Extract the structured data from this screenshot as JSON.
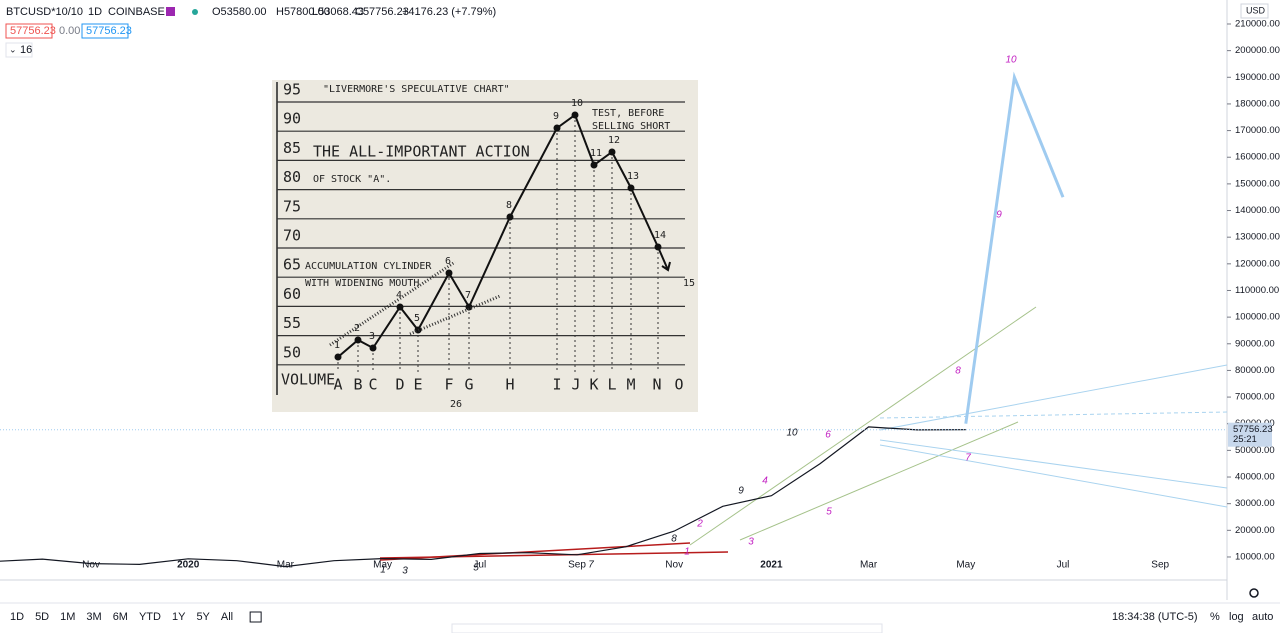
{
  "header": {
    "symbol": "BTCUSD*10/10",
    "interval": "1D",
    "exchange": "COINBASE",
    "open": "O53580.00",
    "high": "H57800.00",
    "low": "L53068.43",
    "close": "C57756.23",
    "change": "+4176.23 (+7.79%)"
  },
  "indicators": {
    "box1": "57756.23",
    "mid": "0.00",
    "box2": "57756.23",
    "count": "16"
  },
  "currency": "USD",
  "price_label": {
    "price": "57756.23",
    "countdown": "25:21"
  },
  "chart_data": {
    "type": "line",
    "categories": [
      null,
      null,
      "Nov",
      null,
      "2020",
      null,
      "Mar",
      null,
      "May",
      null,
      "Jul",
      null,
      "Sep",
      null,
      "Nov",
      null,
      "2021",
      null,
      "Mar",
      null,
      "May",
      null,
      "Jul",
      null,
      "Sep"
    ],
    "series": [
      {
        "color": "#131722",
        "values": [
          8300,
          9200,
          7500,
          7200,
          9300,
          8600,
          6400,
          8600,
          9400,
          9100,
          11300,
          11600,
          10800,
          13800,
          19700,
          29000,
          33000,
          45000,
          58800,
          57700,
          57756.23,
          null,
          null,
          null,
          null
        ]
      },
      {
        "color": "#9fcbf0",
        "values": [
          null,
          null,
          null,
          null,
          null,
          null,
          null,
          null,
          null,
          null,
          null,
          null,
          null,
          null,
          null,
          null,
          null,
          null,
          null,
          null,
          60000,
          190000,
          145000,
          null,
          null
        ]
      }
    ],
    "ylim": [
      1360,
      219000
    ],
    "yticks": [
      {
        "value": 10000,
        "label": "10000.00"
      },
      {
        "value": 20000,
        "label": "20000.00"
      },
      {
        "value": 30000,
        "label": "30000.00"
      },
      {
        "value": 40000,
        "label": "40000.00"
      },
      {
        "value": 50000,
        "label": "50000.00"
      },
      {
        "value": 60000,
        "label": "60000.00"
      },
      {
        "value": 70000,
        "label": "70000.00"
      },
      {
        "value": 80000,
        "label": "80000.00"
      },
      {
        "value": 90000,
        "label": "90000.00"
      },
      {
        "value": 100000,
        "label": "100000.00"
      },
      {
        "value": 110000,
        "label": "110000.00"
      },
      {
        "value": 120000,
        "label": "120000.00"
      },
      {
        "value": 130000,
        "label": "130000.00"
      },
      {
        "value": 140000,
        "label": "140000.00"
      },
      {
        "value": 150000,
        "label": "150000.00"
      },
      {
        "value": 160000,
        "label": "160000.00"
      },
      {
        "value": 170000,
        "label": "170000.00"
      },
      {
        "value": 180000,
        "label": "180000.00"
      },
      {
        "value": 190000,
        "label": "190000.00"
      },
      {
        "value": 200000,
        "label": "200000.00"
      },
      {
        "value": 210000,
        "label": "210000.00"
      }
    ],
    "grid": false
  },
  "annotations": [
    {
      "label": "10",
      "color": "#c21fc2"
    },
    {
      "label": "9",
      "color": "#c21fc2"
    },
    {
      "label": "8",
      "color": "#c21fc2"
    },
    {
      "label": "7",
      "color": "#c21fc2"
    },
    {
      "label": "6",
      "color": "#c21fc2"
    },
    {
      "label": "5",
      "color": "#c21fc2"
    },
    {
      "label": "4",
      "color": "#c21fc2"
    },
    {
      "label": "3",
      "color": "#c21fc2"
    },
    {
      "label": "2",
      "color": "#c21fc2"
    },
    {
      "label": "1",
      "color": "#c21fc2"
    },
    {
      "label": "10",
      "color": "#131722"
    },
    {
      "label": "9",
      "color": "#131722"
    },
    {
      "label": "8",
      "color": "#131722"
    },
    {
      "label": "7",
      "color": "#131722"
    },
    {
      "label": "5",
      "color": "#131722"
    },
    {
      "label": "3",
      "color": "#131722"
    },
    {
      "label": "1",
      "color": "#131722"
    }
  ],
  "inset": {
    "title": "\"LIVERMORE'S SPECULATIVE CHART\"",
    "note": "TEST, BEFORE",
    "note2": "SELLING SHORT",
    "caption": "THE ALL-IMPORTANT ACTION",
    "caption2": "OF STOCK \"A\".",
    "cylinder": "ACCUMULATION CYLINDER",
    "cylinder2": "WITH WIDENING MOUTH",
    "volume": "VOLUME",
    "page": "26",
    "y_labels": [
      95,
      90,
      85,
      80,
      75,
      70,
      65,
      60,
      55,
      50
    ],
    "letters": [
      "A",
      "B",
      "C",
      "D",
      "E",
      "F",
      "G",
      "H",
      "I",
      "J",
      "K",
      "L",
      "M",
      "N",
      "O"
    ],
    "points": [
      "1",
      "2",
      "3",
      "4",
      "5",
      "6",
      "7",
      "8",
      "9",
      "10",
      "11",
      "12",
      "13",
      "14",
      "15"
    ]
  },
  "toolbar": {
    "ranges": [
      "1D",
      "5D",
      "1M",
      "3M",
      "6M",
      "YTD",
      "1Y",
      "5Y",
      "All"
    ],
    "time": "18:34:38 (UTC-5)",
    "percent": "%",
    "log": "log",
    "auto": "auto"
  }
}
